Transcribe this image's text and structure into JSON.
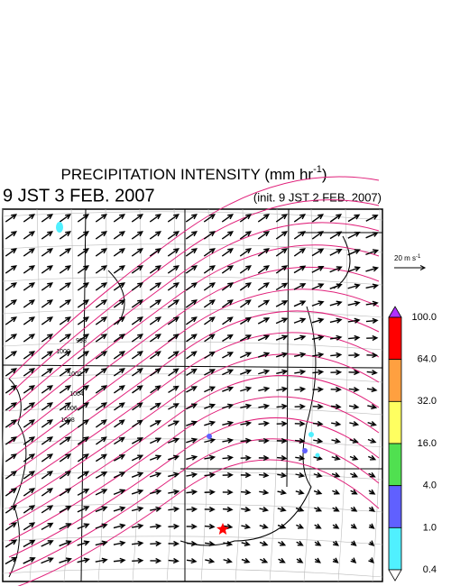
{
  "header": {
    "title": {
      "text": "PRECIPITATION INTENSITY (mm hr",
      "superscript": "-1",
      "suffix": ")"
    },
    "valid_time": "9 JST 3 FEB. 2007",
    "init_time": "(init. 9 JST 2 FEB. 2007)"
  },
  "reference_vector": {
    "text": "20 m s",
    "superscript": "-1"
  },
  "colorbar": {
    "labels": [
      "100.0",
      "64.0",
      "32.0",
      "16.0",
      "4.0",
      "1.0",
      "0.4"
    ],
    "colors": [
      "#ff0000",
      "#ffa040",
      "#ffff60",
      "#50e050",
      "#6060ff",
      "#50f0ff"
    ],
    "over_color": "#b030ff",
    "under_color": "#ffffff"
  },
  "isobar_labels": [
    "998",
    "1000",
    "1002",
    "1004",
    "1006",
    "1008"
  ]
}
